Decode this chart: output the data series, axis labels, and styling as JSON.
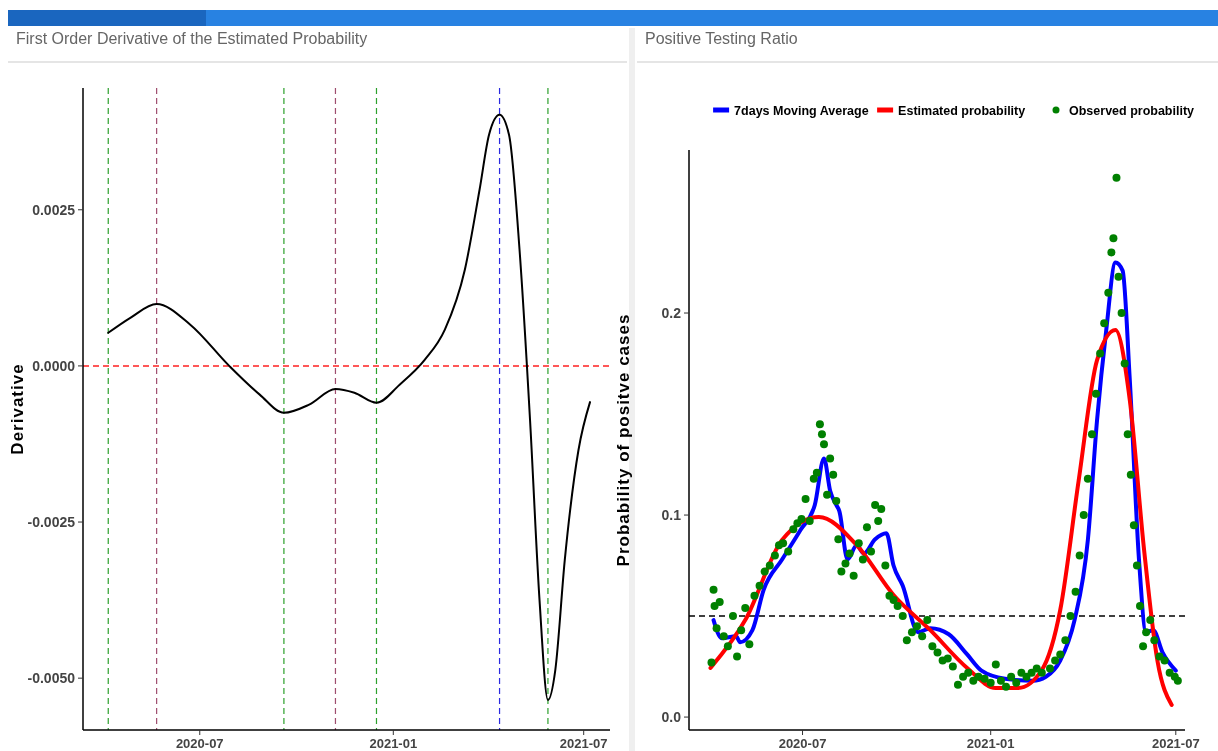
{
  "chart_data": [
    {
      "type": "line",
      "title": "First Order Derivative of the Estimated Probability",
      "ylabel": "Derivative",
      "xlim": [
        "2020-03-12",
        "2021-07-26"
      ],
      "ylim": [
        -0.00583,
        0.00445
      ],
      "xticks": [
        {
          "value": "2020-07-01",
          "label": "2020-07"
        },
        {
          "value": "2021-01-01",
          "label": "2021-01"
        },
        {
          "value": "2021-07-01",
          "label": "2021-07"
        }
      ],
      "yticks": [
        {
          "value": -0.005,
          "label": "-0.0050"
        },
        {
          "value": -0.0025,
          "label": "-0.0025"
        },
        {
          "value": 0,
          "label": "0.0000"
        },
        {
          "value": 0.0025,
          "label": "0.0025"
        }
      ],
      "grid": false,
      "legend": false,
      "ref_lines": [
        {
          "axis": "y",
          "value": 0,
          "color": "#ff2020",
          "line_style": "dashed"
        },
        {
          "axis": "x",
          "value": "2020-04-05",
          "color": "#2ca02c",
          "line_style": "dashed"
        },
        {
          "axis": "x",
          "value": "2020-05-21",
          "color": "#9e4d6e",
          "line_style": "dashed"
        },
        {
          "axis": "x",
          "value": "2020-09-19",
          "color": "#2ca02c",
          "line_style": "dashed"
        },
        {
          "axis": "x",
          "value": "2020-11-07",
          "color": "#9e4d6e",
          "line_style": "dashed"
        },
        {
          "axis": "x",
          "value": "2020-12-16",
          "color": "#2ca02c",
          "line_style": "dashed"
        },
        {
          "axis": "x",
          "value": "2021-04-12",
          "color": "#2a2ae0",
          "line_style": "dashed"
        },
        {
          "axis": "x",
          "value": "2021-05-28",
          "color": "#2ca02c",
          "line_style": "dashed"
        }
      ],
      "series": [
        {
          "color": "#000000",
          "line_style": "solid",
          "x": [
            "2020-04-05",
            "2020-04-26",
            "2020-05-21",
            "2020-06-22",
            "2020-07-29",
            "2020-08-27",
            "2020-09-19",
            "2020-10-13",
            "2020-11-07",
            "2020-11-25",
            "2020-12-16",
            "2021-01-07",
            "2021-01-31",
            "2021-02-19",
            "2021-03-10",
            "2021-03-24",
            "2021-04-02",
            "2021-04-12",
            "2021-04-21",
            "2021-05-01",
            "2021-05-11",
            "2021-05-20",
            "2021-05-28",
            "2021-06-04",
            "2021-06-13",
            "2021-06-26",
            "2021-07-07"
          ],
          "values": [
            0.00053,
            0.00077,
            0.00099,
            0.00066,
            0,
            -0.00046,
            -0.00075,
            -0.00062,
            -0.00037,
            -0.00043,
            -0.00059,
            -0.0003,
            0.0001,
            0.00058,
            0.00154,
            0.00282,
            0.0037,
            0.00402,
            0.0037,
            0.00186,
            -0.00087,
            -0.00375,
            -0.00535,
            -0.00487,
            -0.00311,
            -0.00135,
            -0.00058
          ]
        }
      ]
    },
    {
      "type": "line",
      "title": "Positive Testing Ratio",
      "ylabel": "Probability of positve cases",
      "xlim": [
        "2020-03-12",
        "2021-07-10"
      ],
      "ylim": [
        -0.0064,
        0.2807
      ],
      "xticks": [
        {
          "value": "2020-07-01",
          "label": "2020-07"
        },
        {
          "value": "2021-01-01",
          "label": "2021-01"
        },
        {
          "value": "2021-07-01",
          "label": "2021-07"
        }
      ],
      "yticks": [
        {
          "value": 0,
          "label": "0.0"
        },
        0.1,
        0.2
      ],
      "grid": false,
      "legend": "top right",
      "ref_lines": [
        {
          "axis": "y",
          "value": 0.05,
          "color": "#000000",
          "line_style": "dashed"
        }
      ],
      "series": [
        {
          "name": "7days Moving Average",
          "color": "#0000ff",
          "line_style": "solid",
          "x": [
            "2020-04-05",
            "2020-04-13",
            "2020-04-27",
            "2020-05-01",
            "2020-05-13",
            "2020-05-24",
            "2020-06-11",
            "2020-06-29",
            "2020-07-13",
            "2020-07-22",
            "2020-07-28",
            "2020-08-03",
            "2020-08-06",
            "2020-08-14",
            "2020-08-23",
            "2020-08-30",
            "2020-09-10",
            "2020-09-21",
            "2020-09-28",
            "2020-10-07",
            "2020-10-22",
            "2020-11-03",
            "2020-11-21",
            "2020-12-09",
            "2020-12-23",
            "2021-01-15",
            "2021-02-11",
            "2021-02-24",
            "2021-03-10",
            "2021-03-24",
            "2021-04-06",
            "2021-04-15",
            "2021-04-24",
            "2021-05-03",
            "2021-05-10",
            "2021-05-17",
            "2021-05-26",
            "2021-06-02",
            "2021-06-09",
            "2021-06-18",
            "2021-07-01"
          ],
          "values": [
            0.048,
            0.039,
            0.04,
            0.037,
            0.043,
            0.063,
            0.078,
            0.0926,
            0.105,
            0.128,
            0.112,
            0.105,
            0.102,
            0.078,
            0.085,
            0.081,
            0.088,
            0.091,
            0.075,
            0.065,
            0.042,
            0.044,
            0.041,
            0.031,
            0.023,
            0.019,
            0.018,
            0.02,
            0.028,
            0.048,
            0.0876,
            0.147,
            0.1916,
            0.225,
            0.221,
            0.167,
            0.078,
            0.042,
            0.043,
            0.032,
            0.023
          ]
        },
        {
          "name": "Estimated probability",
          "color": "#ff0000",
          "line_style": "solid",
          "x": [
            "2020-04-02",
            "2020-05-06",
            "2020-06-11",
            "2020-07-17",
            "2020-08-23",
            "2020-09-28",
            "2020-11-03",
            "2020-12-09",
            "2021-01-06",
            "2021-01-28",
            "2021-02-20",
            "2021-03-10",
            "2021-03-28",
            "2021-04-15",
            "2021-05-03",
            "2021-05-17",
            "2021-05-31",
            "2021-06-13",
            "2021-06-27"
          ],
          "values": [
            0.0243,
            0.048,
            0.0876,
            0.099,
            0.0851,
            0.0604,
            0.043,
            0.0243,
            0.0144,
            0.0144,
            0.0233,
            0.053,
            0.117,
            0.1767,
            0.1916,
            0.157,
            0.0827,
            0.028,
            0.006
          ]
        },
        {
          "type": "scatter",
          "name": "Observed probability",
          "color": "#008000",
          "marker": "circle",
          "x": [
            "2020-04-03",
            "2020-04-05",
            "2020-04-06",
            "2020-04-08",
            "2020-04-11",
            "2020-04-15",
            "2020-04-19",
            "2020-04-24",
            "2020-04-28",
            "2020-05-02",
            "2020-05-06",
            "2020-05-10",
            "2020-05-15",
            "2020-05-20",
            "2020-05-25",
            "2020-05-30",
            "2020-06-04",
            "2020-06-08",
            "2020-06-12",
            "2020-06-17",
            "2020-06-22",
            "2020-06-26",
            "2020-06-30",
            "2020-07-04",
            "2020-07-08",
            "2020-07-12",
            "2020-07-15",
            "2020-07-18",
            "2020-07-20",
            "2020-07-22",
            "2020-07-25",
            "2020-07-28",
            "2020-07-31",
            "2020-08-03",
            "2020-08-05",
            "2020-08-08",
            "2020-08-12",
            "2020-08-16",
            "2020-08-20",
            "2020-08-25",
            "2020-08-29",
            "2020-09-02",
            "2020-09-06",
            "2020-09-10",
            "2020-09-13",
            "2020-09-16",
            "2020-09-20",
            "2020-09-24",
            "2020-09-28",
            "2020-10-02",
            "2020-10-07",
            "2020-10-11",
            "2020-10-16",
            "2020-10-21",
            "2020-10-26",
            "2020-10-31",
            "2020-11-05",
            "2020-11-10",
            "2020-11-15",
            "2020-11-20",
            "2020-11-25",
            "2020-11-30",
            "2020-12-05",
            "2020-12-10",
            "2020-12-15",
            "2020-12-20",
            "2020-12-26",
            "2021-01-01",
            "2021-01-06",
            "2021-01-11",
            "2021-01-16",
            "2021-01-21",
            "2021-01-26",
            "2021-01-31",
            "2021-02-05",
            "2021-02-10",
            "2021-02-15",
            "2021-02-20",
            "2021-02-28",
            "2021-03-05",
            "2021-03-10",
            "2021-03-15",
            "2021-03-20",
            "2021-03-25",
            "2021-03-29",
            "2021-04-02",
            "2021-04-06",
            "2021-04-10",
            "2021-04-14",
            "2021-04-18",
            "2021-04-22",
            "2021-04-26",
            "2021-04-29",
            "2021-05-01",
            "2021-05-04",
            "2021-05-06",
            "2021-05-09",
            "2021-05-12",
            "2021-05-15",
            "2021-05-18",
            "2021-05-21",
            "2021-05-24",
            "2021-05-27",
            "2021-05-30",
            "2021-06-02",
            "2021-06-06",
            "2021-06-10",
            "2021-06-15",
            "2021-06-20",
            "2021-06-25",
            "2021-06-30",
            "2021-07-03"
          ],
          "values": [
            0.027,
            0.063,
            0.055,
            0.044,
            0.057,
            0.04,
            0.035,
            0.05,
            0.03,
            0.043,
            0.054,
            0.036,
            0.06,
            0.065,
            0.072,
            0.075,
            0.08,
            0.085,
            0.086,
            0.082,
            0.093,
            0.096,
            0.098,
            0.108,
            0.097,
            0.118,
            0.121,
            0.145,
            0.14,
            0.135,
            0.11,
            0.128,
            0.12,
            0.107,
            0.088,
            0.072,
            0.076,
            0.081,
            0.07,
            0.086,
            0.078,
            0.094,
            0.082,
            0.105,
            0.097,
            0.103,
            0.075,
            0.06,
            0.058,
            0.055,
            0.05,
            0.038,
            0.042,
            0.045,
            0.04,
            0.048,
            0.035,
            0.032,
            0.028,
            0.029,
            0.025,
            0.016,
            0.02,
            0.022,
            0.018,
            0.02,
            0.019,
            0.017,
            0.026,
            0.018,
            0.015,
            0.02,
            0.017,
            0.022,
            0.02,
            0.022,
            0.024,
            0.022,
            0.024,
            0.028,
            0.031,
            0.038,
            0.05,
            0.062,
            0.08,
            0.1,
            0.118,
            0.14,
            0.16,
            0.18,
            0.195,
            0.21,
            0.23,
            0.237,
            0.267,
            0.218,
            0.2,
            0.175,
            0.14,
            0.12,
            0.095,
            0.075,
            0.055,
            0.035,
            0.042,
            0.048,
            0.038,
            0.03,
            0.028,
            0.022,
            0.02,
            0.018
          ]
        }
      ]
    }
  ]
}
